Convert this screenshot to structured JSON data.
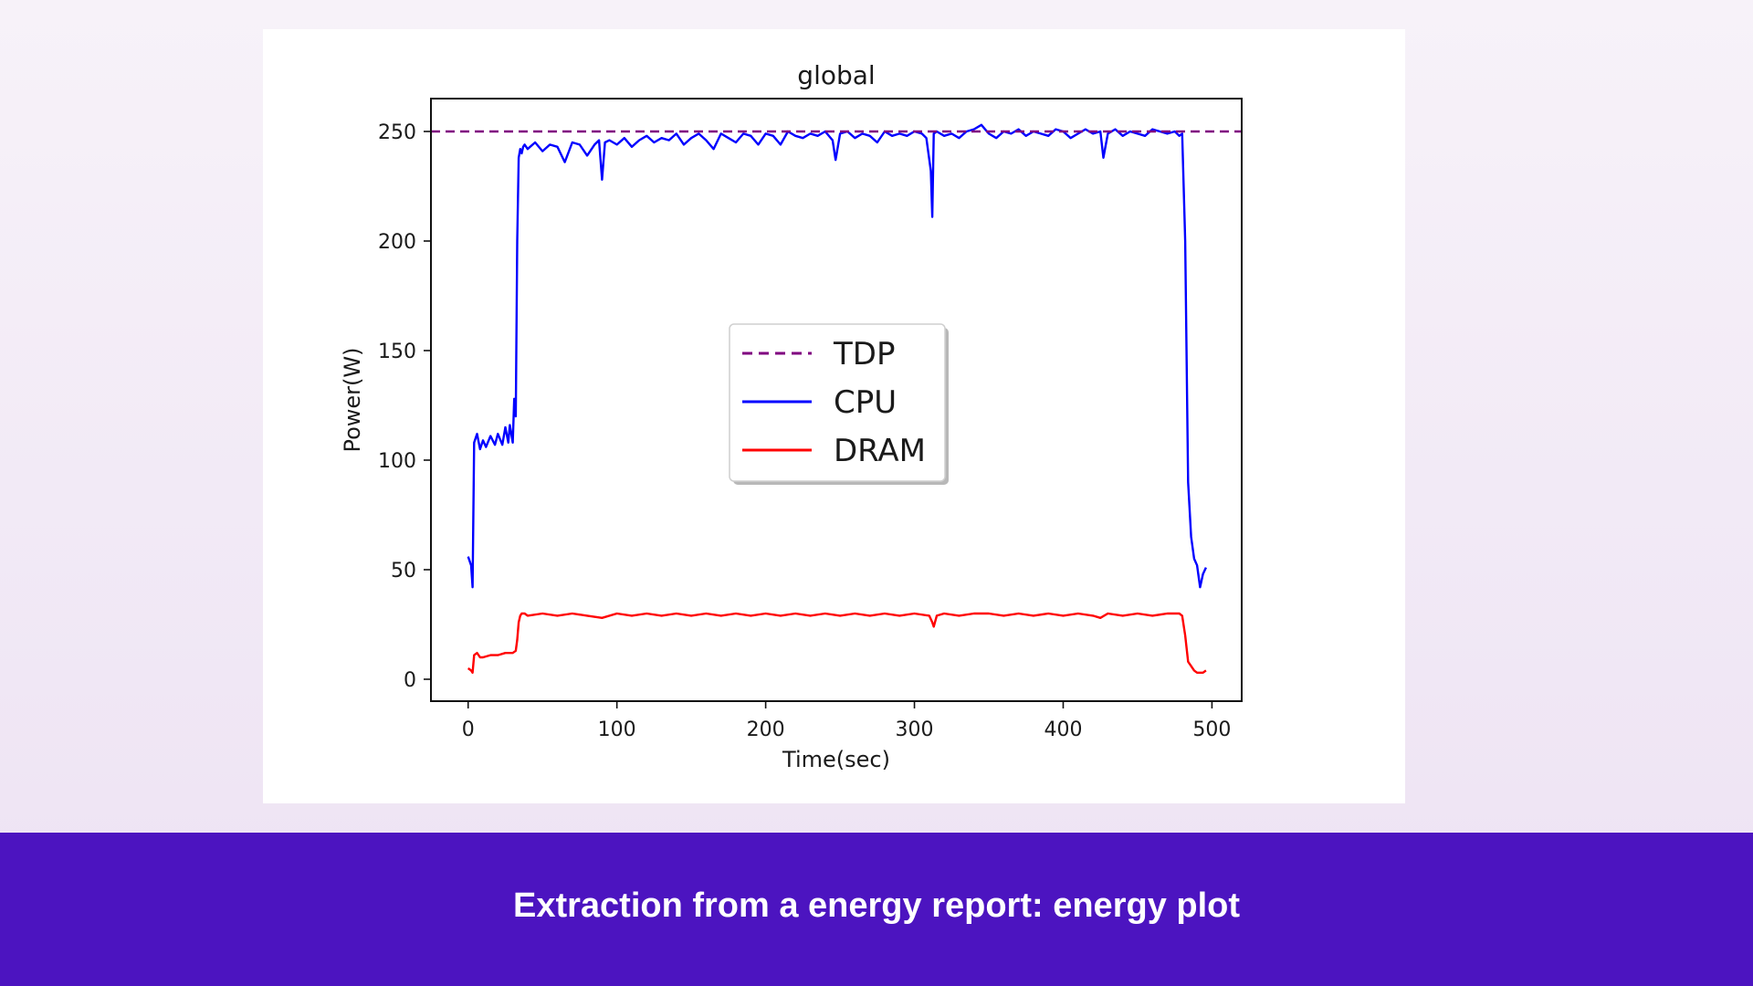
{
  "caption": "Extraction from a energy report: energy plot",
  "chart_data": {
    "type": "line",
    "title": "global",
    "xlabel": "Time(sec)",
    "ylabel": "Power(W)",
    "xlim": [
      -25,
      520
    ],
    "ylim": [
      -10,
      265
    ],
    "xticks": [
      0,
      100,
      200,
      300,
      400,
      500
    ],
    "yticks": [
      0,
      50,
      100,
      150,
      200,
      250
    ],
    "grid": false,
    "legend_position": "center",
    "series": [
      {
        "name": "TDP",
        "color": "#800080",
        "style": "dashed",
        "x": [
          -25,
          520
        ],
        "y": [
          250,
          250
        ]
      },
      {
        "name": "CPU",
        "color": "#0000ff",
        "style": "solid",
        "x": [
          0,
          2,
          3,
          4,
          5,
          6,
          8,
          10,
          12,
          15,
          18,
          20,
          23,
          25,
          27,
          28,
          30,
          31,
          32,
          33,
          34,
          35,
          36,
          37,
          38,
          40,
          45,
          50,
          55,
          60,
          65,
          70,
          75,
          80,
          85,
          88,
          90,
          92,
          95,
          100,
          105,
          110,
          115,
          120,
          125,
          130,
          135,
          140,
          145,
          150,
          155,
          160,
          165,
          170,
          175,
          180,
          185,
          190,
          195,
          200,
          205,
          210,
          215,
          220,
          225,
          230,
          235,
          240,
          245,
          247,
          250,
          255,
          260,
          265,
          270,
          275,
          280,
          285,
          290,
          295,
          300,
          305,
          308,
          311,
          312,
          313,
          315,
          320,
          325,
          330,
          335,
          340,
          345,
          350,
          355,
          360,
          365,
          370,
          375,
          380,
          385,
          390,
          395,
          400,
          405,
          410,
          415,
          420,
          425,
          427,
          430,
          435,
          440,
          445,
          450,
          455,
          460,
          465,
          470,
          475,
          478,
          480,
          482,
          484,
          486,
          488,
          490,
          492,
          494,
          496
        ],
        "y": [
          56,
          52,
          42,
          108,
          110,
          112,
          105,
          109,
          106,
          111,
          107,
          112,
          107,
          115,
          108,
          116,
          108,
          128,
          120,
          200,
          238,
          242,
          240,
          243,
          244,
          242,
          245,
          241,
          244,
          243,
          236,
          245,
          244,
          239,
          244,
          246,
          228,
          245,
          246,
          244,
          247,
          243,
          246,
          248,
          245,
          247,
          246,
          249,
          244,
          247,
          249,
          246,
          242,
          249,
          247,
          245,
          249,
          248,
          244,
          249,
          248,
          244,
          250,
          248,
          247,
          249,
          248,
          250,
          246,
          237,
          249,
          250,
          247,
          249,
          248,
          245,
          250,
          248,
          249,
          248,
          250,
          249,
          247,
          232,
          211,
          249,
          250,
          248,
          249,
          247,
          250,
          251,
          253,
          249,
          247,
          250,
          249,
          251,
          248,
          250,
          249,
          248,
          251,
          250,
          247,
          249,
          251,
          249,
          250,
          238,
          249,
          251,
          248,
          250,
          249,
          248,
          251,
          250,
          249,
          250,
          248,
          249,
          200,
          90,
          65,
          55,
          52,
          42,
          48,
          51
        ]
      },
      {
        "name": "DRAM",
        "color": "#ff0000",
        "style": "solid",
        "x": [
          0,
          2,
          3,
          4,
          6,
          8,
          10,
          15,
          20,
          25,
          30,
          32,
          33,
          34,
          35,
          36,
          38,
          40,
          50,
          60,
          70,
          80,
          90,
          100,
          110,
          120,
          130,
          140,
          150,
          160,
          170,
          180,
          190,
          200,
          210,
          220,
          230,
          240,
          250,
          260,
          270,
          280,
          290,
          300,
          310,
          312,
          313,
          315,
          320,
          330,
          340,
          350,
          360,
          370,
          380,
          390,
          400,
          410,
          420,
          425,
          430,
          440,
          450,
          460,
          470,
          478,
          480,
          482,
          484,
          486,
          488,
          490,
          492,
          494,
          496
        ],
        "y": [
          5,
          4,
          3,
          11,
          12,
          10,
          10,
          11,
          11,
          12,
          12,
          13,
          18,
          26,
          29,
          30,
          30,
          29,
          30,
          29,
          30,
          29,
          28,
          30,
          29,
          30,
          29,
          30,
          29,
          30,
          29,
          30,
          29,
          30,
          29,
          30,
          29,
          30,
          29,
          30,
          29,
          30,
          29,
          30,
          29,
          26,
          24,
          29,
          30,
          29,
          30,
          30,
          29,
          30,
          29,
          30,
          29,
          30,
          29,
          28,
          30,
          29,
          30,
          29,
          30,
          30,
          29,
          20,
          8,
          6,
          4,
          3,
          3,
          3,
          4
        ]
      }
    ]
  }
}
